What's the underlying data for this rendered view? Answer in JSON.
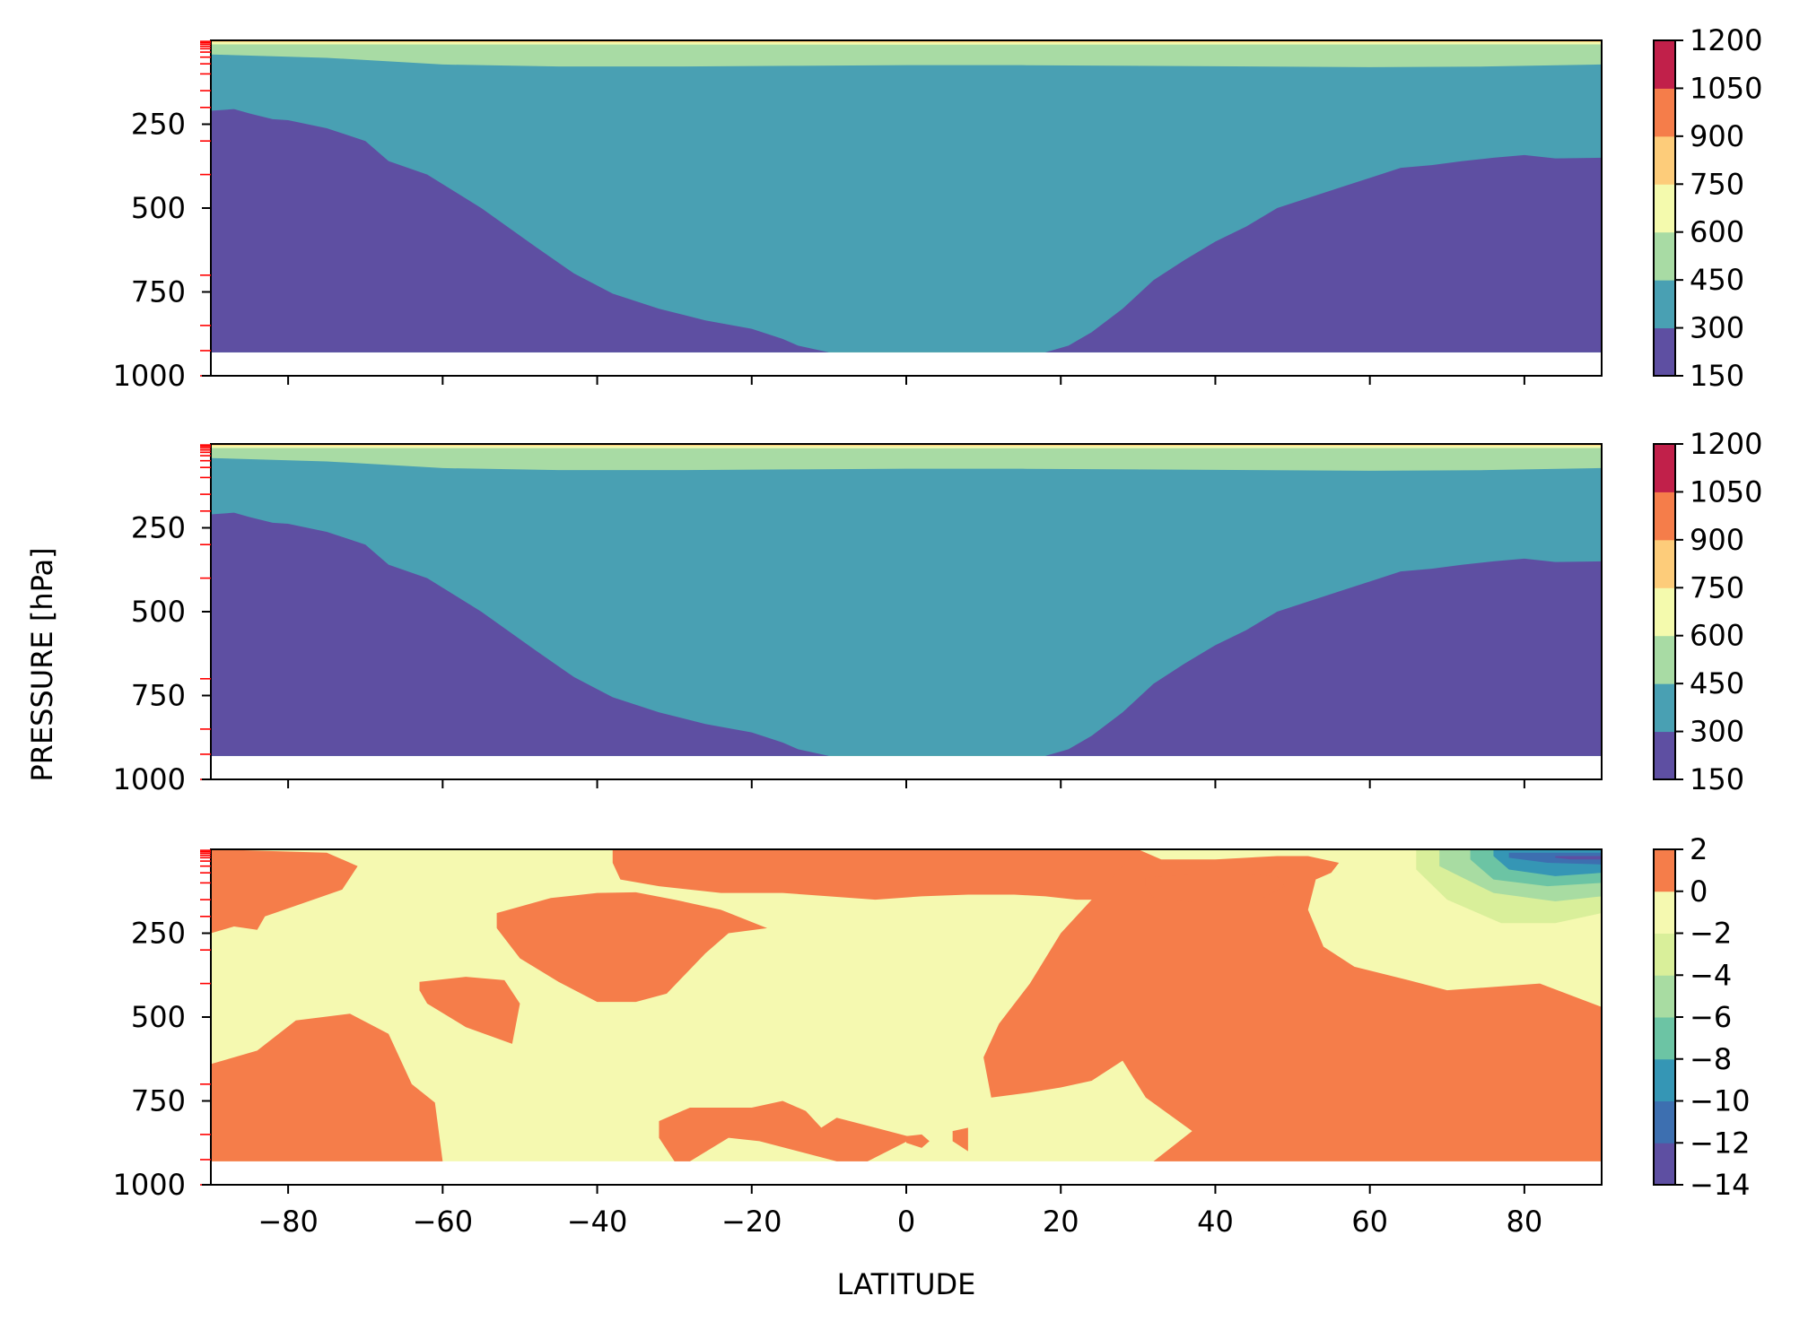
{
  "figure": {
    "ylabel": "PRESSURE [hPa]",
    "xlabel": "LATITUDE"
  },
  "chart_data": [
    {
      "type": "contourf",
      "panel": "top",
      "x_ticks": [
        -80,
        -60,
        -40,
        -20,
        0,
        20,
        40,
        60,
        80
      ],
      "xlim": [
        -90,
        90
      ],
      "y_ticks": [
        250,
        500,
        750,
        1000
      ],
      "ylim": [
        1000,
        0
      ],
      "y_inverted": true,
      "data_bottom": 930,
      "levels": [
        150,
        300,
        450,
        600,
        750,
        900,
        1050,
        1200
      ],
      "level_colors": [
        "#5e4fa2",
        "#49a0b3",
        "#a8dba4",
        "#f4faad",
        "#fdcc7a",
        "#f57d4a",
        "#c1204a"
      ],
      "colorbar_ticks": [
        "1200",
        "1050",
        "900",
        "750",
        "600",
        "450",
        "300",
        "150"
      ],
      "boundary_150_300": {
        "lat": [
          -90,
          -87,
          -85,
          -82,
          -80,
          -75,
          -70,
          -67,
          -62,
          -55,
          -48,
          -43,
          -38,
          -32,
          -26,
          -20,
          -16,
          -14,
          -10,
          -6,
          0,
          6,
          12,
          18,
          21,
          24,
          28,
          32,
          36,
          40,
          44,
          48,
          52,
          56,
          60,
          64,
          68,
          72,
          76,
          80,
          84,
          90
        ],
        "p": [
          210,
          205,
          218,
          235,
          238,
          262,
          300,
          360,
          400,
          500,
          615,
          695,
          755,
          800,
          835,
          860,
          890,
          910,
          930,
          930,
          930,
          930,
          930,
          930,
          910,
          870,
          800,
          715,
          655,
          600,
          555,
          500,
          470,
          440,
          410,
          380,
          372,
          360,
          350,
          342,
          352,
          350
        ]
      },
      "boundary_300_450": {
        "lat": [
          -90,
          -75,
          -60,
          -45,
          -30,
          -15,
          0,
          15,
          30,
          45,
          60,
          75,
          90
        ],
        "p": [
          42,
          52,
          72,
          78,
          78,
          76,
          74,
          74,
          76,
          78,
          80,
          78,
          72
        ]
      },
      "boundary_450_600": {
        "lat": [
          -90,
          -60,
          -30,
          0,
          30,
          60,
          90
        ],
        "p": [
          22,
          24,
          25,
          26,
          25,
          24,
          22
        ]
      },
      "boundary_600_750": {
        "lat": [
          -90,
          0,
          90
        ],
        "p": [
          12,
          13,
          12
        ]
      },
      "boundary_750_900": {
        "lat": [
          -90,
          0,
          90
        ],
        "p": [
          5,
          6,
          5
        ]
      }
    },
    {
      "type": "contourf",
      "panel": "middle",
      "x_ticks": [
        -80,
        -60,
        -40,
        -20,
        0,
        20,
        40,
        60,
        80
      ],
      "xlim": [
        -90,
        90
      ],
      "y_ticks": [
        250,
        500,
        750,
        1000
      ],
      "ylim": [
        1000,
        0
      ],
      "y_inverted": true,
      "data_bottom": 930,
      "levels": [
        150,
        300,
        450,
        600,
        750,
        900,
        1050,
        1200
      ],
      "level_colors": [
        "#5e4fa2",
        "#49a0b3",
        "#a8dba4",
        "#f4faad",
        "#fdcc7a",
        "#f57d4a",
        "#c1204a"
      ],
      "colorbar_ticks": [
        "1200",
        "1050",
        "900",
        "750",
        "600",
        "450",
        "300",
        "150"
      ],
      "boundary_150_300": {
        "lat": [
          -90,
          -87,
          -85,
          -82,
          -80,
          -75,
          -70,
          -67,
          -62,
          -55,
          -48,
          -43,
          -38,
          -32,
          -26,
          -20,
          -16,
          -14,
          -10,
          -6,
          0,
          6,
          12,
          18,
          21,
          24,
          28,
          32,
          36,
          40,
          44,
          48,
          52,
          56,
          60,
          64,
          68,
          72,
          76,
          80,
          84,
          90
        ],
        "p": [
          210,
          205,
          218,
          235,
          238,
          262,
          300,
          360,
          400,
          500,
          615,
          695,
          755,
          800,
          835,
          860,
          890,
          910,
          930,
          930,
          930,
          930,
          930,
          930,
          910,
          870,
          800,
          715,
          655,
          600,
          555,
          500,
          470,
          440,
          410,
          380,
          372,
          360,
          350,
          342,
          352,
          350
        ]
      },
      "boundary_300_450": {
        "lat": [
          -90,
          -75,
          -60,
          -45,
          -30,
          -15,
          0,
          15,
          30,
          45,
          60,
          75,
          90
        ],
        "p": [
          42,
          52,
          72,
          78,
          78,
          76,
          74,
          74,
          76,
          78,
          80,
          78,
          72
        ]
      },
      "boundary_450_600": {
        "lat": [
          -90,
          -60,
          -30,
          0,
          30,
          60,
          90
        ],
        "p": [
          22,
          24,
          25,
          26,
          25,
          24,
          22
        ]
      },
      "boundary_600_750": {
        "lat": [
          -90,
          0,
          90
        ],
        "p": [
          12,
          13,
          12
        ]
      },
      "boundary_750_900": {
        "lat": [
          -90,
          0,
          90
        ],
        "p": [
          5,
          6,
          5
        ]
      }
    },
    {
      "type": "contourf",
      "panel": "bottom",
      "x_ticks": [
        -80,
        -60,
        -40,
        -20,
        0,
        20,
        40,
        60,
        80
      ],
      "xlim": [
        -90,
        90
      ],
      "y_ticks": [
        250,
        500,
        750,
        1000
      ],
      "ylim": [
        1000,
        0
      ],
      "y_inverted": true,
      "data_bottom": 930,
      "levels": [
        -14,
        -12,
        -10,
        -8,
        -6,
        -4,
        -2,
        0,
        2
      ],
      "level_colors": [
        "#5e4fa2",
        "#3d6fb0",
        "#3596b5",
        "#6cc4a4",
        "#a8dca2",
        "#d9ef9a",
        "#f5f9b0",
        "#f57d4a"
      ],
      "colorbar_ticks": [
        "2",
        "0",
        "−2",
        "−4",
        "−6",
        "−8",
        "−10",
        "−12",
        "−14"
      ],
      "background_range": [
        -2,
        0
      ],
      "positive_regions": [
        {
          "lat": [
            -90,
            -75,
            -71,
            -73,
            -83,
            -84,
            -87,
            -90
          ],
          "p": [
            0,
            10,
            50,
            120,
            200,
            240,
            230,
            250
          ]
        },
        {
          "lat": [
            -38,
            -30,
            -20,
            -10,
            0,
            10,
            18,
            24,
            28,
            30,
            30,
            22,
            18,
            14,
            8,
            2,
            -4,
            -10,
            -16,
            -24,
            -32,
            -37,
            -38
          ],
          "p": [
            0,
            0,
            0,
            0,
            0,
            0,
            0,
            0,
            0,
            0,
            150,
            150,
            140,
            135,
            135,
            140,
            150,
            140,
            130,
            130,
            110,
            90,
            40
          ]
        },
        {
          "lat": [
            -53,
            -46,
            -40,
            -35,
            -30,
            -24,
            -18,
            -23,
            -26,
            -31,
            -35,
            -40,
            -45,
            -50,
            -53
          ],
          "p": [
            190,
            145,
            130,
            128,
            150,
            180,
            235,
            250,
            310,
            430,
            455,
            455,
            395,
            325,
            235
          ]
        },
        {
          "lat": [
            -63,
            -57,
            -52,
            -50,
            -51,
            -57,
            -62,
            -63
          ],
          "p": [
            395,
            380,
            390,
            460,
            580,
            530,
            460,
            420
          ]
        },
        {
          "lat": [
            -90,
            -84,
            -79,
            -72,
            -67,
            -64,
            -61,
            -60,
            -90
          ],
          "p": [
            640,
            600,
            510,
            490,
            550,
            700,
            755,
            930,
            930
          ]
        },
        {
          "lat": [
            30,
            33,
            40,
            48,
            52,
            56,
            55,
            53,
            52,
            54,
            58,
            65,
            70,
            82,
            90,
            90,
            32,
            37,
            31,
            28,
            24,
            20,
            16,
            11,
            10,
            12,
            16,
            20,
            30
          ],
          "p": [
            0,
            30,
            30,
            20,
            20,
            40,
            70,
            90,
            180,
            290,
            350,
            390,
            420,
            400,
            470,
            930,
            930,
            840,
            740,
            630,
            690,
            710,
            725,
            740,
            620,
            520,
            400,
            250,
            0
          ]
        },
        {
          "lat": [
            31,
            37,
            44,
            48,
            49,
            45,
            38,
            32,
            31
          ],
          "p": [
            85,
            75,
            75,
            80,
            110,
            160,
            160,
            145,
            110
          ]
        },
        {
          "lat": [
            -32,
            -28,
            -20,
            -16,
            -13,
            -11,
            -9,
            -4,
            1,
            -5,
            -9,
            -14,
            -19,
            -23,
            -28,
            -30,
            -32
          ],
          "p": [
            810,
            770,
            770,
            750,
            780,
            830,
            800,
            830,
            860,
            930,
            930,
            900,
            870,
            860,
            930,
            930,
            860
          ]
        },
        {
          "lat": [
            0,
            2,
            3,
            2,
            0
          ],
          "p": [
            855,
            850,
            870,
            890,
            875
          ]
        },
        {
          "lat": [
            6,
            8,
            8,
            6,
            6
          ],
          "p": [
            840,
            830,
            900,
            870,
            855
          ]
        }
      ],
      "negative_regions": [
        {
          "range": [
            -4,
            -2
          ],
          "lat": [
            66,
            74,
            82,
            90,
            90,
            84,
            77,
            70,
            66
          ],
          "p": [
            0,
            0,
            0,
            0,
            190,
            220,
            220,
            150,
            60
          ]
        },
        {
          "range": [
            -6,
            -4
          ],
          "lat": [
            69,
            78,
            90,
            90,
            84,
            76,
            69
          ],
          "p": [
            0,
            0,
            0,
            140,
            155,
            130,
            50
          ]
        },
        {
          "range": [
            -8,
            -6
          ],
          "lat": [
            73,
            80,
            90,
            90,
            83,
            76,
            73
          ],
          "p": [
            0,
            0,
            0,
            100,
            110,
            90,
            30
          ]
        },
        {
          "range": [
            -10,
            -8
          ],
          "lat": [
            76,
            84,
            90,
            90,
            84,
            78,
            76
          ],
          "p": [
            0,
            0,
            0,
            70,
            80,
            60,
            20
          ]
        },
        {
          "range": [
            -12,
            -10
          ],
          "lat": [
            78,
            86,
            90,
            90,
            83,
            78
          ],
          "p": [
            10,
            10,
            10,
            45,
            40,
            25
          ]
        },
        {
          "range": [
            -14,
            -12
          ],
          "lat": [
            84,
            90,
            90,
            86,
            84
          ],
          "p": [
            20,
            20,
            30,
            30,
            25
          ]
        }
      ]
    }
  ]
}
